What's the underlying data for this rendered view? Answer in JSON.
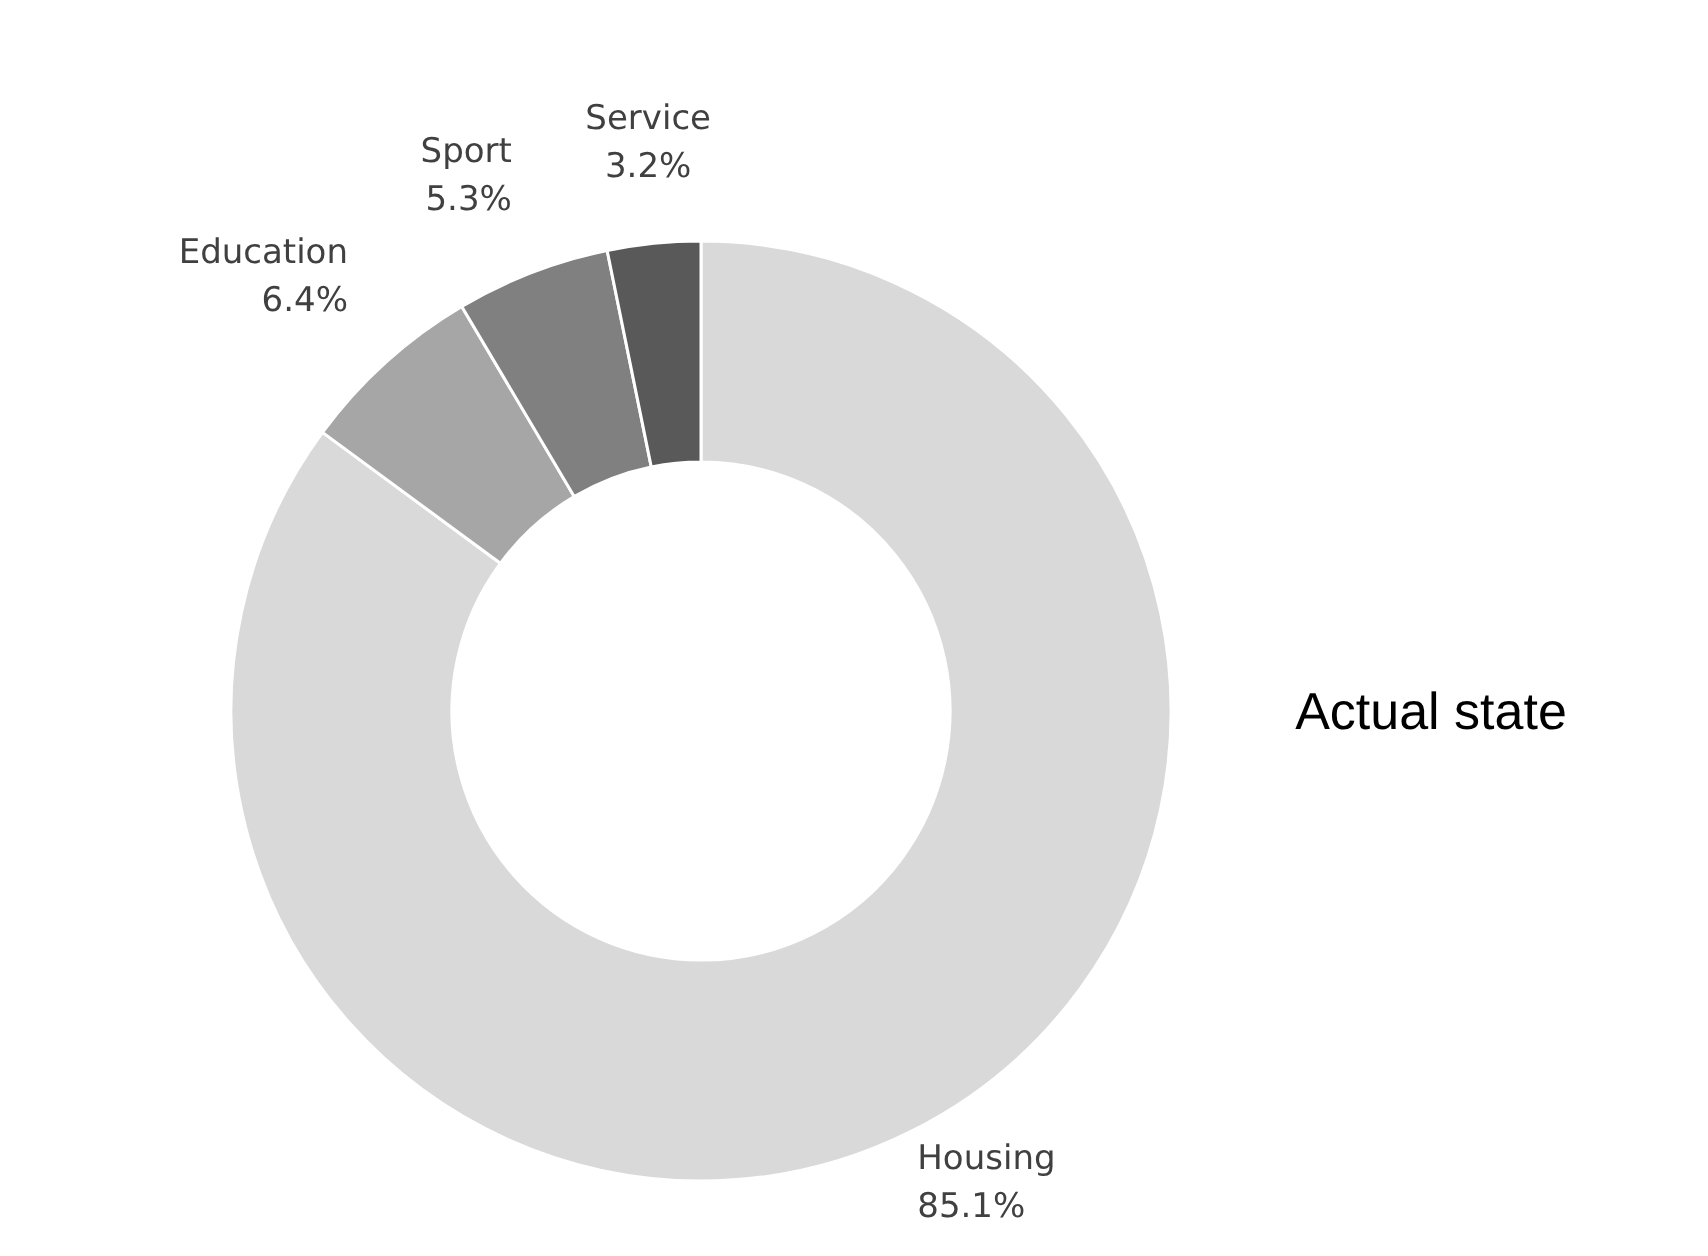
{
  "chart_data": {
    "type": "donut",
    "title": "Actual state",
    "categories": [
      "Housing",
      "Education",
      "Sport",
      "Service"
    ],
    "values": [
      85.1,
      6.4,
      5.3,
      3.2
    ],
    "value_labels": [
      "85.1%",
      "6.4%",
      "5.3%",
      "3.2%"
    ],
    "colors": [
      "#d9d9d9",
      "#a6a6a6",
      "#808080",
      "#595959"
    ],
    "legend": false
  }
}
